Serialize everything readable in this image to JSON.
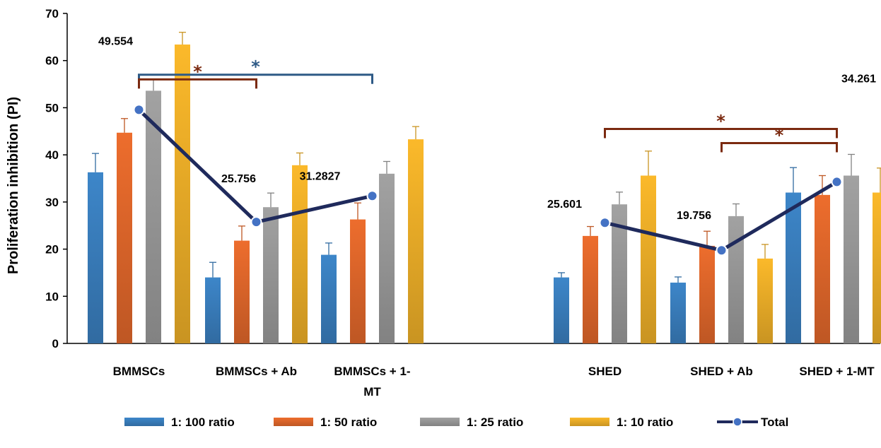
{
  "chart_data": {
    "type": "bar",
    "ylabel": "Proliferation inhibition (PI)",
    "ylim": [
      0,
      70
    ],
    "yticks": [
      "0",
      "10",
      "20",
      "30",
      "40",
      "50",
      "60",
      "70"
    ],
    "categories": [
      [
        "BMMSCs"
      ],
      [
        "BMMSCs + Ab"
      ],
      [
        "BMMSCs + 1-",
        "MT"
      ],
      [
        "SHED"
      ],
      [
        "SHED + Ab"
      ],
      [
        "SHED + 1-MT"
      ]
    ],
    "series": [
      {
        "name": "1: 100 ratio",
        "color": "#3d86c9",
        "values": [
          36.3,
          14.0,
          18.8,
          14.0,
          12.9,
          32.0
        ],
        "errors": [
          4.0,
          3.2,
          2.5,
          1.0,
          1.2,
          5.3
        ]
      },
      {
        "name": "1: 50 ratio",
        "color": "#ed6d2d",
        "values": [
          44.7,
          21.8,
          26.3,
          22.8,
          20.7,
          31.5
        ],
        "errors": [
          3.0,
          3.1,
          3.5,
          2.0,
          3.1,
          4.1
        ]
      },
      {
        "name": "1: 25 ratio",
        "color": "#a2a2a2",
        "values": [
          53.6,
          28.9,
          36.0,
          29.5,
          27.0,
          35.6
        ],
        "errors": [
          2.4,
          3.0,
          2.6,
          2.6,
          2.6,
          4.5
        ]
      },
      {
        "name": "1: 10 ratio",
        "color": "#fbb92a",
        "values": [
          63.4,
          37.8,
          43.3,
          35.6,
          18.0,
          32.0
        ],
        "errors": [
          2.6,
          2.6,
          2.7,
          5.2,
          3.0,
          5.2
        ]
      }
    ],
    "total": {
      "name": "Total",
      "color": "#1f2a5c",
      "marker_color": "#4472c4",
      "values": [
        49.554,
        25.756,
        31.2827,
        25.601,
        19.756,
        34.261
      ],
      "labels": [
        "49.554",
        "25.756",
        "31.2827",
        "25.601",
        "19.756",
        "34.261"
      ]
    },
    "significance": [
      {
        "from": 0,
        "to": 2,
        "level": 57,
        "label": "*",
        "color": "#2e5a86"
      },
      {
        "from": 0,
        "to": 1,
        "level": 56,
        "label": "*",
        "color": "#7b2a10"
      },
      {
        "from": 3,
        "to": 5,
        "level": 45.5,
        "label": "*",
        "color": "#7b2a10"
      },
      {
        "from": 4,
        "to": 5,
        "level": 42.5,
        "label": "*",
        "color": "#7b2a10"
      }
    ],
    "legend_position": "bottom",
    "grid": false
  }
}
